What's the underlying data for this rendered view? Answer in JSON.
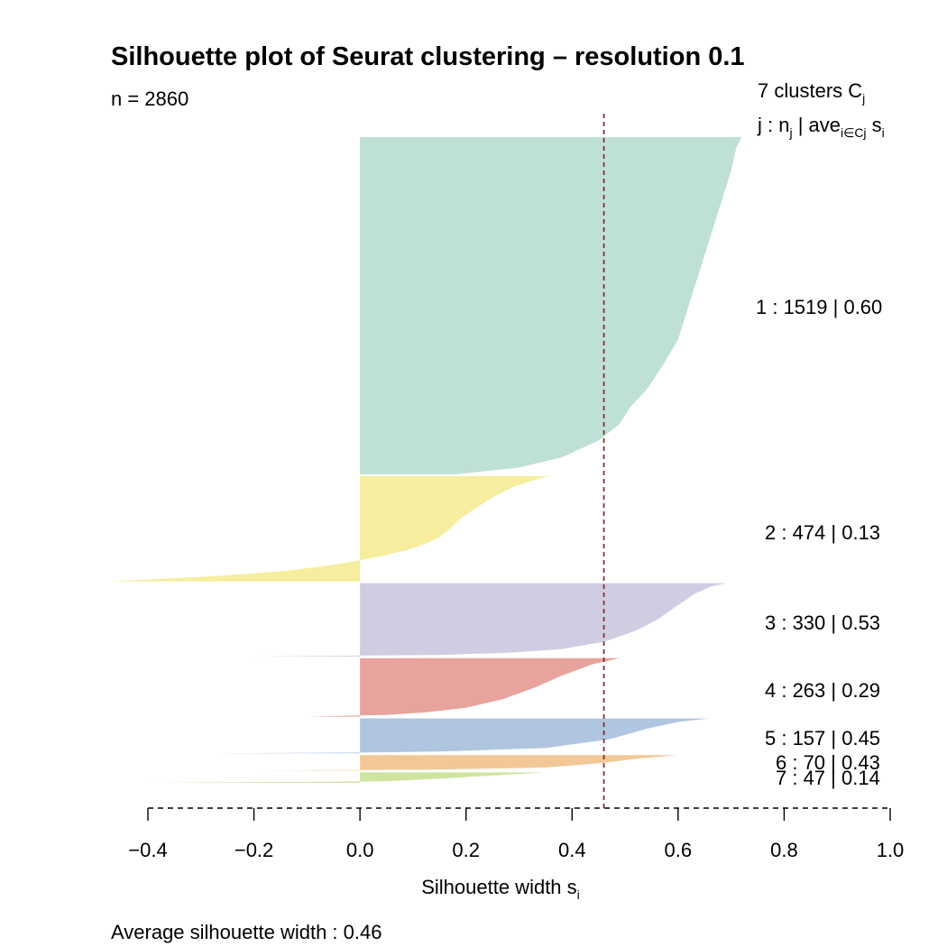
{
  "chart_data": {
    "type": "silhouette",
    "title": "Silhouette plot of Seurat clustering – resolution 0.1",
    "n_label": "n = 2860",
    "header": {
      "line1": "7  clusters  C",
      "line1_sub": "j",
      "line2_parts": [
        {
          "t": "j :  n",
          "sub": "j"
        },
        {
          "t": " | ave",
          "sub": "i∈Cj"
        },
        {
          "t": "  s",
          "sub": "i"
        }
      ]
    },
    "xlabel": "Silhouette width s",
    "xlabel_sub": "i",
    "xlim": [
      -0.4,
      1.0
    ],
    "ticks": [
      -0.4,
      -0.2,
      0.0,
      0.2,
      0.4,
      0.6,
      0.8,
      1.0
    ],
    "tick_labels": [
      "−0.4",
      "−0.2",
      "0.0",
      "0.2",
      "0.4",
      "0.6",
      "0.8",
      "1.0"
    ],
    "average_line": 0.46,
    "footer": "Average silhouette width :  0.46",
    "clusters": [
      {
        "label": "1 :   1519  |  0.60",
        "n": 1519,
        "avg": 0.6,
        "color": "#bfe0d7",
        "profile": [
          [
            0,
            0.72
          ],
          [
            0.03,
            0.71
          ],
          [
            0.1,
            0.7
          ],
          [
            0.2,
            0.68
          ],
          [
            0.3,
            0.66
          ],
          [
            0.4,
            0.64
          ],
          [
            0.5,
            0.62
          ],
          [
            0.6,
            0.6
          ],
          [
            0.68,
            0.57
          ],
          [
            0.75,
            0.54
          ],
          [
            0.8,
            0.51
          ],
          [
            0.85,
            0.49
          ],
          [
            0.9,
            0.45
          ],
          [
            0.95,
            0.38
          ],
          [
            0.98,
            0.3
          ],
          [
            1,
            0.18
          ]
        ]
      },
      {
        "label": "2 :   474  |  0.13",
        "n": 474,
        "avg": 0.13,
        "color": "#f6ee9e",
        "profile": [
          [
            0,
            0.36
          ],
          [
            0.02,
            0.34
          ],
          [
            0.1,
            0.29
          ],
          [
            0.2,
            0.25
          ],
          [
            0.3,
            0.22
          ],
          [
            0.4,
            0.19
          ],
          [
            0.5,
            0.17
          ],
          [
            0.58,
            0.15
          ],
          [
            0.65,
            0.12
          ],
          [
            0.7,
            0.09
          ],
          [
            0.75,
            0.05
          ],
          [
            0.8,
            0.0
          ],
          [
            0.85,
            -0.06
          ],
          [
            0.9,
            -0.14
          ],
          [
            0.95,
            -0.27
          ],
          [
            1,
            -0.47
          ]
        ]
      },
      {
        "label": "3 :   330  |  0.53",
        "n": 330,
        "avg": 0.53,
        "color": "#d0cde3",
        "profile": [
          [
            0,
            0.69
          ],
          [
            0.05,
            0.66
          ],
          [
            0.15,
            0.63
          ],
          [
            0.3,
            0.6
          ],
          [
            0.5,
            0.56
          ],
          [
            0.65,
            0.52
          ],
          [
            0.8,
            0.46
          ],
          [
            0.9,
            0.38
          ],
          [
            0.95,
            0.28
          ],
          [
            0.98,
            0.15
          ],
          [
            1,
            -0.2
          ]
        ]
      },
      {
        "label": "4 :   263  |  0.29",
        "n": 263,
        "avg": 0.29,
        "color": "#e8a39c",
        "profile": [
          [
            0,
            0.49
          ],
          [
            0.1,
            0.44
          ],
          [
            0.3,
            0.38
          ],
          [
            0.5,
            0.33
          ],
          [
            0.7,
            0.27
          ],
          [
            0.85,
            0.2
          ],
          [
            0.93,
            0.12
          ],
          [
            0.97,
            0.05
          ],
          [
            1,
            -0.1
          ]
        ]
      },
      {
        "label": "5 :   157  |  0.45",
        "n": 157,
        "avg": 0.45,
        "color": "#b0c5df",
        "profile": [
          [
            0,
            0.66
          ],
          [
            0.1,
            0.6
          ],
          [
            0.3,
            0.54
          ],
          [
            0.6,
            0.47
          ],
          [
            0.85,
            0.35
          ],
          [
            0.95,
            0.15
          ],
          [
            0.98,
            0.0
          ],
          [
            1,
            -0.26
          ]
        ]
      },
      {
        "label": "6 :   70  |  0.43",
        "n": 70,
        "avg": 0.43,
        "color": "#f2c896",
        "profile": [
          [
            0,
            0.6
          ],
          [
            0.2,
            0.53
          ],
          [
            0.5,
            0.46
          ],
          [
            0.8,
            0.35
          ],
          [
            0.93,
            0.15
          ],
          [
            1,
            -0.2
          ]
        ]
      },
      {
        "label": "7 :   47  |  0.14",
        "n": 47,
        "avg": 0.14,
        "color": "#cfe59f",
        "profile": [
          [
            0,
            0.35
          ],
          [
            0.3,
            0.25
          ],
          [
            0.6,
            0.15
          ],
          [
            0.85,
            0.05
          ],
          [
            1,
            -0.4
          ]
        ]
      }
    ]
  }
}
